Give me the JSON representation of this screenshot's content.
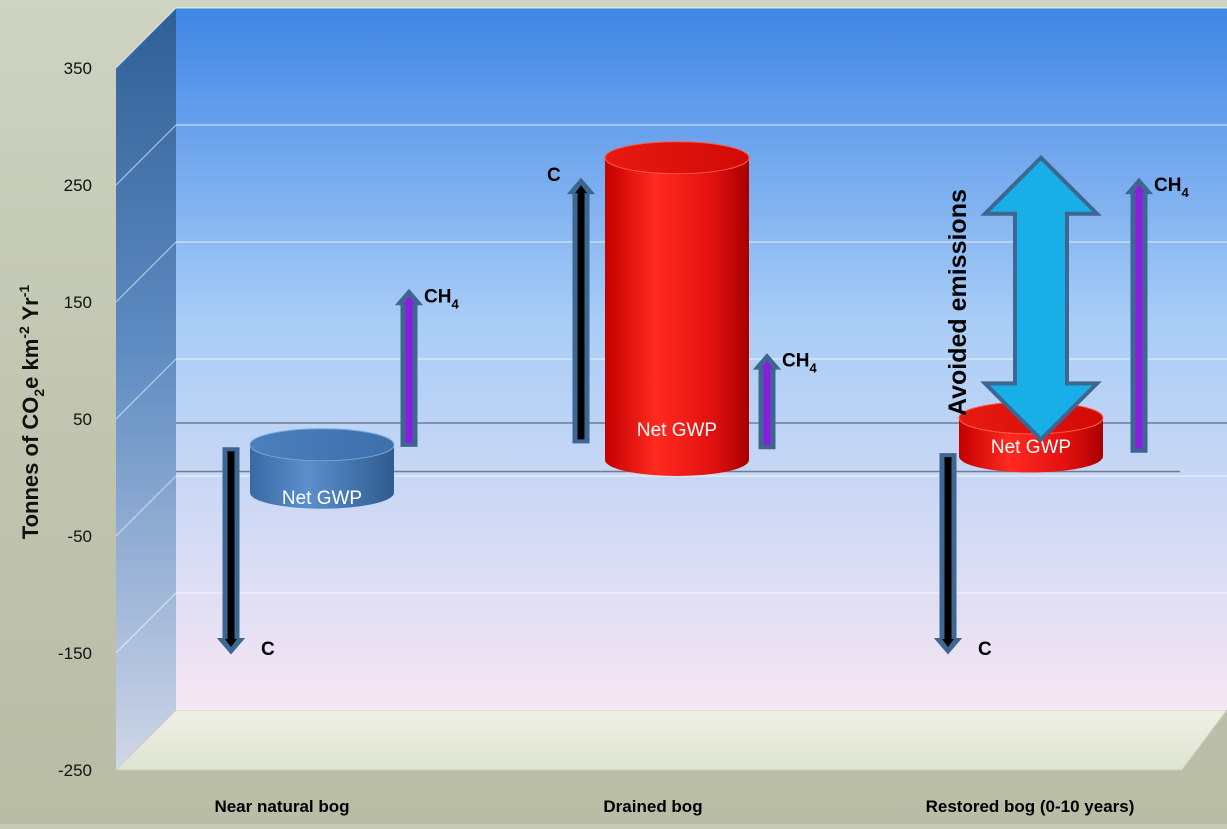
{
  "chart_data": {
    "type": "bar",
    "title": "",
    "xlabel": "",
    "ylabel": {
      "parts": [
        "Tonnes of CO",
        "2",
        "e km",
        "-2",
        " Yr",
        "-1"
      ],
      "text": "Tonnes of CO2e km-2 Yr-1"
    },
    "ylim": [
      -250,
      350
    ],
    "yticks": [
      350,
      250,
      150,
      50,
      -50,
      -150,
      -250
    ],
    "ytick_labels": [
      "350",
      "250",
      "150",
      "50",
      "-50",
      "-150",
      "-250"
    ],
    "categories": [
      "Near natural bog",
      "Drained bog",
      "Restored bog (0-10 years)"
    ],
    "series": [
      {
        "name": "Net GWP",
        "values": [
          -23,
          275,
          24
        ],
        "colors": [
          "#4a7fb8",
          "#e81010",
          "#e81010"
        ],
        "labels": [
          "Net GWP",
          "Net GWP",
          "Net GWP"
        ]
      }
    ],
    "flows": [
      {
        "category": 0,
        "gas": "C",
        "from": 25,
        "to": -150,
        "label": "C"
      },
      {
        "category": 0,
        "gas": "CH4",
        "from": 27,
        "to": 160,
        "label": "CH",
        "label_sub": "4"
      },
      {
        "category": 1,
        "gas": "C",
        "from": 30,
        "to": 255,
        "label": "C"
      },
      {
        "category": 1,
        "gas": "CH4",
        "from": 25,
        "to": 105,
        "label": "CH",
        "label_sub": "4"
      },
      {
        "category": 2,
        "gas": "C",
        "from": 20,
        "to": -150,
        "label": "C"
      },
      {
        "category": 2,
        "gas": "CH4",
        "from": 22,
        "to": 255,
        "label": "CH",
        "label_sub": "4"
      }
    ],
    "annotation": {
      "text": "Avoided emissions",
      "category": 2,
      "from": 275,
      "to": 24
    },
    "grid": true,
    "legend": "none"
  },
  "colors": {
    "wall_top": "#3f86e6",
    "wall_bottom": "#f7e6f4",
    "blue_bar": "#4a7fb8",
    "red_bar": "#e81010",
    "carbon_arrow": "#000000",
    "methane_arrow": "#8a1ee0",
    "arrow_outline": "#3d6791",
    "avoided_arrow": "#18aee8"
  }
}
